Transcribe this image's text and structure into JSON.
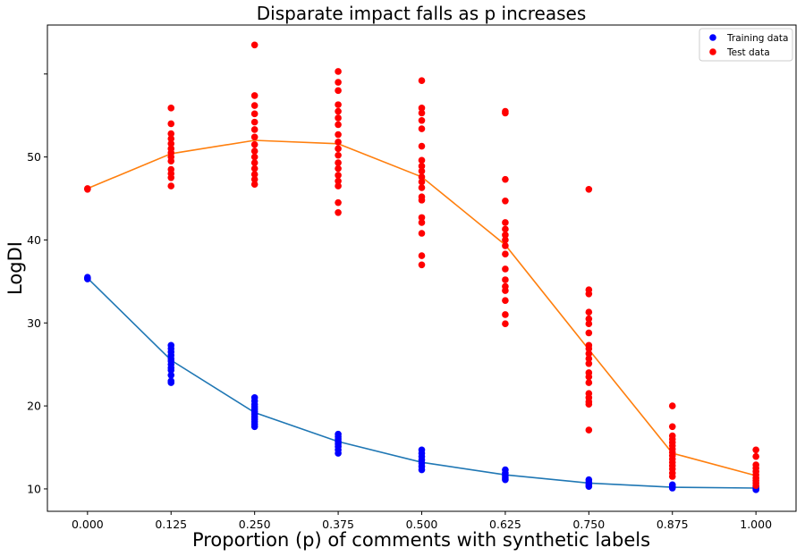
{
  "chart_data": {
    "type": "scatter",
    "title": "Disparate impact falls as p increases",
    "xlabel": "Proportion (p) of comments with synthetic labels",
    "ylabel": "LogDI",
    "xlim": [
      -0.06,
      1.06
    ],
    "ylim": [
      7.3,
      65.9
    ],
    "x_ticks": [
      0.0,
      0.125,
      0.25,
      0.375,
      0.5,
      0.625,
      0.75,
      0.875,
      1.0
    ],
    "x_tick_labels": [
      "0.000",
      "0.125",
      "0.250",
      "0.375",
      "0.500",
      "0.625",
      "0.750",
      "0.875",
      "1.000"
    ],
    "y_ticks": [
      10,
      20,
      30,
      40,
      50,
      60
    ],
    "y_tick_labels": [
      "10",
      "20",
      "30",
      "40",
      "50",
      ""
    ],
    "grid": false,
    "legend_position": "top-right",
    "series": [
      {
        "name": "Training data",
        "color": "#0000ff",
        "line_color": "#1f77b4",
        "mean_line": [
          {
            "x": 0.0,
            "y": 35.4
          },
          {
            "x": 0.125,
            "y": 25.5
          },
          {
            "x": 0.25,
            "y": 19.2
          },
          {
            "x": 0.375,
            "y": 15.7
          },
          {
            "x": 0.5,
            "y": 13.2
          },
          {
            "x": 0.625,
            "y": 11.7
          },
          {
            "x": 0.75,
            "y": 10.7
          },
          {
            "x": 0.875,
            "y": 10.2
          },
          {
            "x": 1.0,
            "y": 10.1
          }
        ],
        "points": [
          {
            "x": 0.0,
            "values": [
              35.4,
              35.5,
              35.3
            ]
          },
          {
            "x": 0.125,
            "values": [
              27.3,
              26.9,
              26.5,
              26.1,
              25.7,
              25.4,
              25.0,
              24.6,
              24.3,
              23.7,
              23.0,
              22.8
            ]
          },
          {
            "x": 0.25,
            "values": [
              21.0,
              20.6,
              20.2,
              19.9,
              19.6,
              19.3,
              19.0,
              18.7,
              18.4,
              18.1,
              17.8,
              17.5
            ]
          },
          {
            "x": 0.375,
            "values": [
              16.6,
              16.3,
              16.0,
              15.7,
              15.4,
              15.1,
              14.7,
              14.3
            ]
          },
          {
            "x": 0.5,
            "values": [
              14.7,
              14.3,
              13.9,
              13.5,
              13.1,
              12.7,
              12.3
            ]
          },
          {
            "x": 0.625,
            "values": [
              12.3,
              11.9,
              11.6,
              11.3,
              11.1
            ]
          },
          {
            "x": 0.75,
            "values": [
              11.1,
              10.8,
              10.5,
              10.3
            ]
          },
          {
            "x": 0.875,
            "values": [
              10.5,
              10.3,
              10.1
            ]
          },
          {
            "x": 1.0,
            "values": [
              10.3,
              10.1,
              10.0,
              9.9
            ]
          }
        ]
      },
      {
        "name": "Test data",
        "color": "#ff0000",
        "line_color": "#ff7f0e",
        "mean_line": [
          {
            "x": 0.0,
            "y": 46.2
          },
          {
            "x": 0.125,
            "y": 50.4
          },
          {
            "x": 0.25,
            "y": 52.0
          },
          {
            "x": 0.375,
            "y": 51.6
          },
          {
            "x": 0.5,
            "y": 47.6
          },
          {
            "x": 0.625,
            "y": 39.4
          },
          {
            "x": 0.75,
            "y": 26.8
          },
          {
            "x": 0.875,
            "y": 14.3
          },
          {
            "x": 1.0,
            "y": 11.6
          }
        ],
        "points": [
          {
            "x": 0.0,
            "values": [
              46.2,
              46.1
            ]
          },
          {
            "x": 0.125,
            "values": [
              55.9,
              54.0,
              52.8,
              52.2,
              51.6,
              51.0,
              50.5,
              50.0,
              49.5,
              48.5,
              48.0,
              47.5,
              46.5
            ]
          },
          {
            "x": 0.25,
            "values": [
              63.5,
              57.4,
              56.2,
              55.2,
              54.2,
              53.3,
              52.4,
              51.5,
              50.7,
              50.0,
              49.3,
              48.6,
              47.9,
              47.3,
              46.7
            ]
          },
          {
            "x": 0.375,
            "values": [
              60.3,
              59.0,
              58.0,
              56.3,
              55.5,
              54.7,
              53.9,
              52.7,
              51.8,
              51.0,
              50.2,
              49.3,
              48.6,
              47.8,
              47.1,
              46.5,
              44.5,
              43.3
            ]
          },
          {
            "x": 0.5,
            "values": [
              59.2,
              55.9,
              55.3,
              54.4,
              53.4,
              51.3,
              49.6,
              48.9,
              48.3,
              47.6,
              47.0,
              46.3,
              45.2,
              44.8,
              42.7,
              42.1,
              40.8,
              38.1,
              37.0
            ]
          },
          {
            "x": 0.625,
            "values": [
              55.5,
              55.3,
              47.3,
              44.7,
              42.1,
              41.3,
              40.6,
              40.0,
              39.3,
              38.3,
              36.5,
              35.2,
              34.4,
              33.9,
              32.7,
              31.0,
              29.9
            ]
          },
          {
            "x": 0.75,
            "values": [
              46.1,
              34.0,
              33.5,
              31.3,
              30.5,
              29.9,
              28.8,
              27.3,
              26.9,
              26.3,
              25.7,
              25.1,
              24.0,
              23.5,
              22.8,
              21.5,
              21.0,
              20.5,
              20.2,
              17.1
            ]
          },
          {
            "x": 0.875,
            "values": [
              20.0,
              17.5,
              16.4,
              16.0,
              15.6,
              15.2,
              14.8,
              14.4,
              14.0,
              13.6,
              13.2,
              12.8,
              12.4,
              11.9,
              11.5
            ]
          },
          {
            "x": 1.0,
            "values": [
              14.7,
              13.9,
              12.9,
              12.5,
              12.1,
              11.7,
              11.3,
              11.0,
              10.7,
              10.4
            ]
          }
        ]
      }
    ]
  }
}
